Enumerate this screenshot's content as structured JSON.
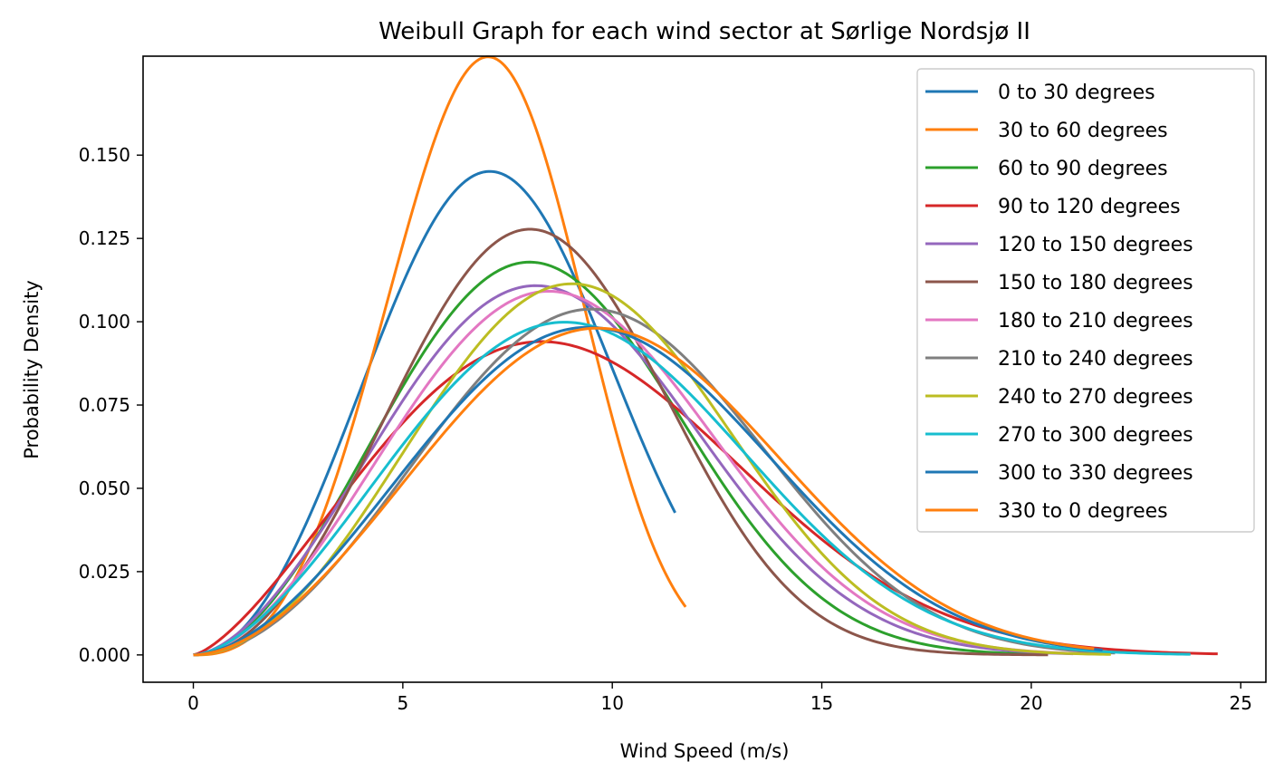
{
  "chart_data": {
    "type": "line",
    "title": "Weibull Graph for each wind sector at Sørlige Nordsjø II",
    "xlabel": "Wind Speed (m/s)",
    "ylabel": "Probability Density",
    "xlim": [
      -1.2,
      25.6
    ],
    "ylim": [
      -0.0082,
      0.1797
    ],
    "xticks": [
      0,
      5,
      10,
      15,
      20,
      25
    ],
    "xtick_labels": [
      "0",
      "5",
      "10",
      "15",
      "20",
      "25"
    ],
    "yticks": [
      0,
      0.025,
      0.05,
      0.075,
      0.1,
      0.125,
      0.15
    ],
    "ytick_labels": [
      "0.000",
      "0.025",
      "0.050",
      "0.075",
      "0.100",
      "0.125",
      "0.150"
    ],
    "grid": false,
    "legend_position": "top-right",
    "series": [
      {
        "name": "0 to 30 degrees",
        "color": "#1f77b4",
        "weibull_k": 3.0,
        "weibull_c": 8.1,
        "x_max": 11.5
      },
      {
        "name": "30 to 60 degrees",
        "color": "#ff7f0e",
        "weibull_k": 3.6,
        "weibull_c": 7.7,
        "x_max": 11.75
      },
      {
        "name": "60 to 90 degrees",
        "color": "#2ca02c",
        "weibull_k": 2.8,
        "weibull_c": 9.4,
        "x_max": 20.3
      },
      {
        "name": "90 to 120 degrees",
        "color": "#d62728",
        "weibull_k": 2.4,
        "weibull_c": 10.4,
        "x_max": 24.45
      },
      {
        "name": "120 to 150 degrees",
        "color": "#9467bd",
        "weibull_k": 2.7,
        "weibull_c": 9.7,
        "x_max": 21.0
      },
      {
        "name": "150 to 180 degrees",
        "color": "#8c564b",
        "weibull_k": 3.0,
        "weibull_c": 9.2,
        "x_max": 20.4
      },
      {
        "name": "180 to 210 degrees",
        "color": "#e377c2",
        "weibull_k": 2.75,
        "weibull_c": 10.0,
        "x_max": 21.5
      },
      {
        "name": "210 to 240 degrees",
        "color": "#7f7f7f",
        "weibull_k": 2.9,
        "weibull_c": 11.0,
        "x_max": 22.0
      },
      {
        "name": "240 to 270 degrees",
        "color": "#bcbd22",
        "weibull_k": 2.95,
        "weibull_c": 10.4,
        "x_max": 21.9
      },
      {
        "name": "270 to 300 degrees",
        "color": "#17becf",
        "weibull_k": 2.65,
        "weibull_c": 10.6,
        "x_max": 23.8
      },
      {
        "name": "300 to 330 degrees",
        "color": "#1f77b4",
        "weibull_k": 2.75,
        "weibull_c": 11.1,
        "x_max": 21.7
      },
      {
        "name": "330 to 0 degrees",
        "color": "#ff7f0e",
        "weibull_k": 2.8,
        "weibull_c": 11.3,
        "x_max": 21.5
      }
    ]
  }
}
